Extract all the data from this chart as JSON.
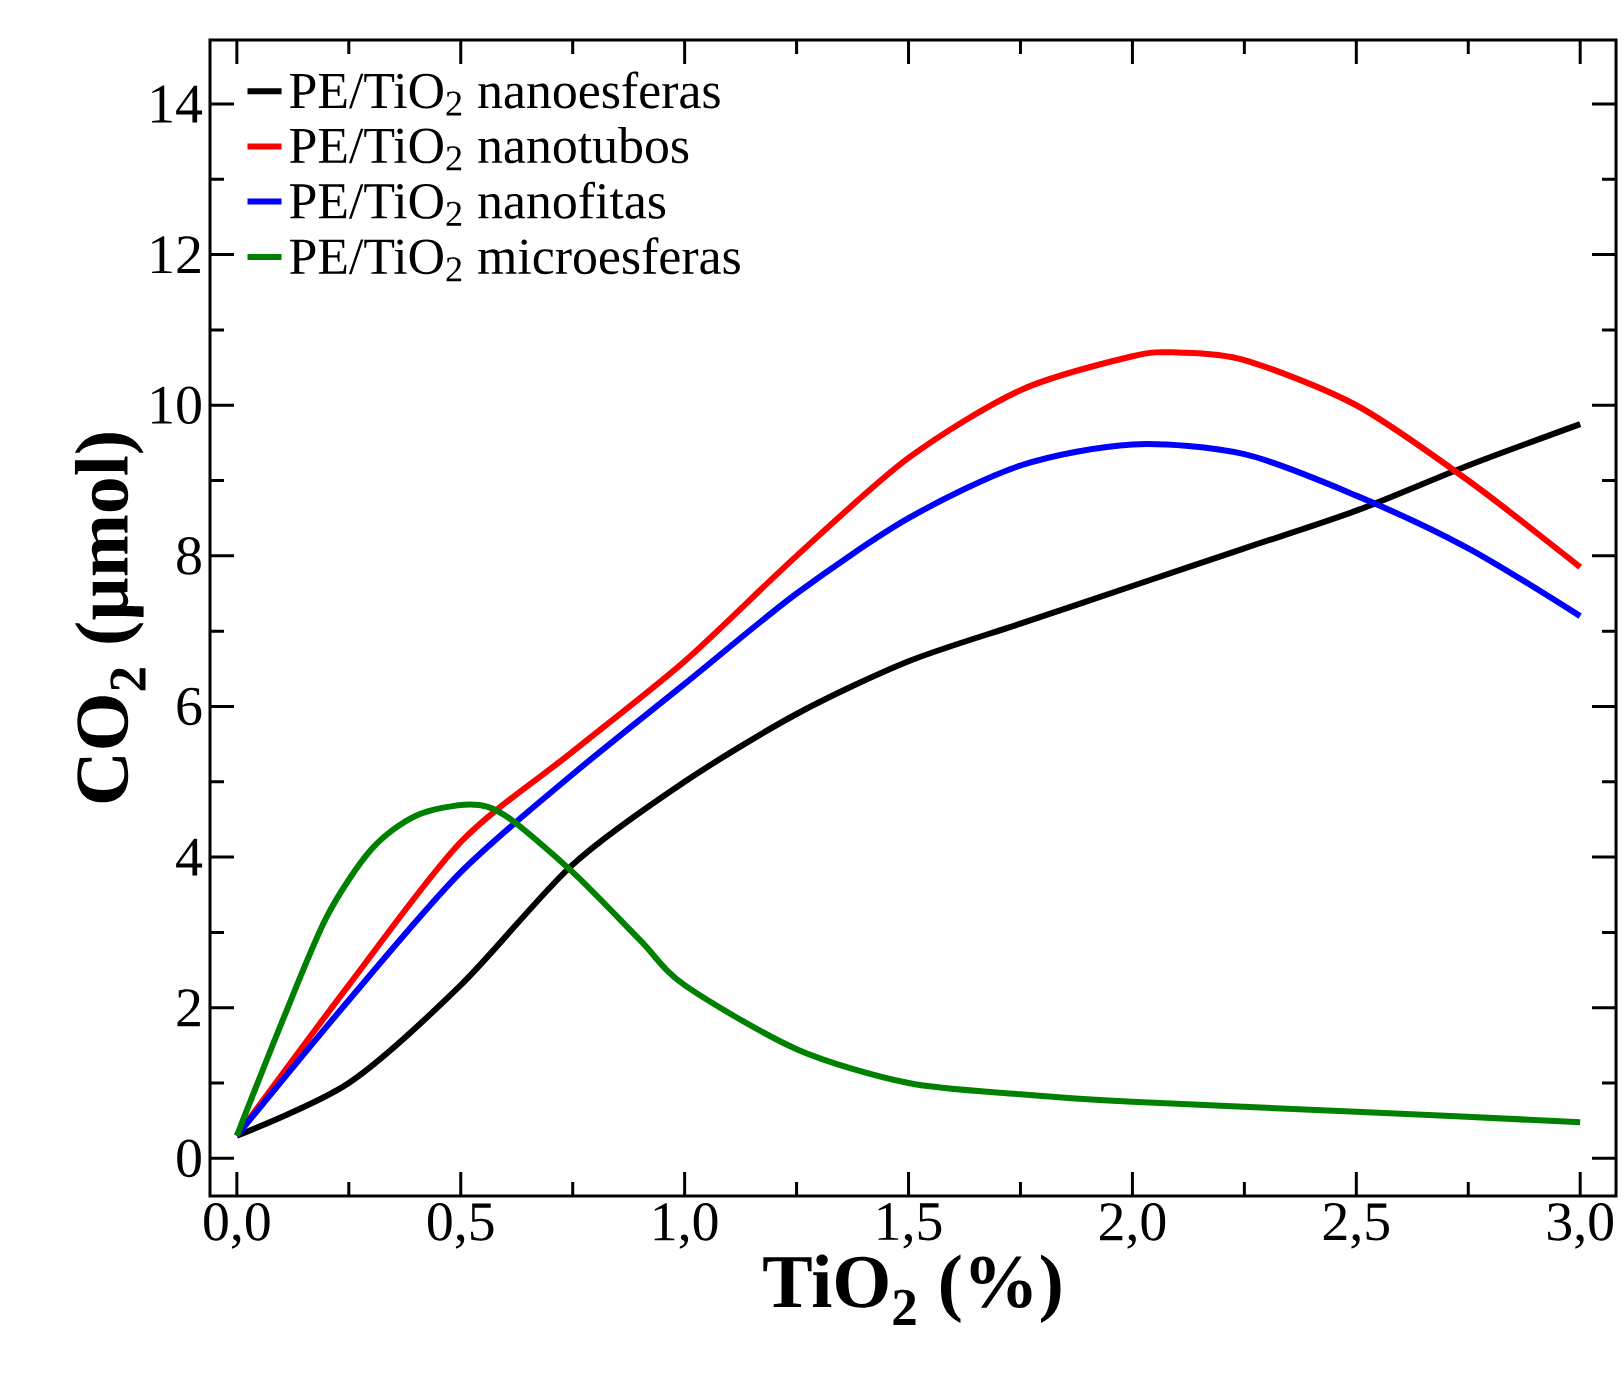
{
  "chart_data": {
    "type": "line",
    "xlabel": "**TiO$_{2}$ (%)**",
    "ylabel": "**CO$_{2}$ (µmol)**",
    "xlim": [
      -0.06,
      3.08
    ],
    "ylim": [
      -0.5,
      14.85
    ],
    "xticks": [
      {
        "value": 0,
        "label": "0,0"
      },
      {
        "value": 0.5,
        "label": "0,5"
      },
      {
        "value": 1,
        "label": "1,0"
      },
      {
        "value": 1.5,
        "label": "1,5"
      },
      {
        "value": 2,
        "label": "2,0"
      },
      {
        "value": 2.5,
        "label": "2,5"
      },
      {
        "value": 3,
        "label": "3,0"
      }
    ],
    "yticks": [
      0,
      2,
      4,
      6,
      8,
      10,
      12,
      14
    ],
    "legend": "top left",
    "grid": false,
    "marker": "none",
    "line_style": "solid",
    "series": [
      {
        "name": "PE/TiO$_{2}$ nanoesferas",
        "color": "#000000",
        "x": [
          0,
          0.25,
          0.5,
          0.75,
          1.0,
          1.25,
          1.5,
          1.75,
          2.0,
          2.25,
          2.5,
          2.75,
          3.0
        ],
        "values": [
          0.3,
          1.0,
          2.3,
          3.9,
          5.0,
          5.9,
          6.6,
          7.1,
          7.6,
          8.1,
          8.6,
          9.2,
          9.75
        ]
      },
      {
        "name": "PE/TiO$_{2}$ nanotubos",
        "color": "#ff0000",
        "x": [
          0,
          0.25,
          0.5,
          0.75,
          1.0,
          1.25,
          1.5,
          1.75,
          2.0,
          2.1,
          2.25,
          2.5,
          2.75,
          3.0
        ],
        "values": [
          0.3,
          2.3,
          4.2,
          5.4,
          6.6,
          8.0,
          9.3,
          10.2,
          10.65,
          10.7,
          10.6,
          10.0,
          9.0,
          7.85
        ]
      },
      {
        "name": "PE/TiO$_{2}$ nanofitas",
        "color": "#0000ff",
        "x": [
          0,
          0.25,
          0.5,
          0.75,
          1.0,
          1.25,
          1.5,
          1.75,
          2.0,
          2.25,
          2.5,
          2.75,
          3.0
        ],
        "values": [
          0.3,
          2.1,
          3.8,
          5.1,
          6.3,
          7.5,
          8.5,
          9.2,
          9.48,
          9.35,
          8.8,
          8.1,
          7.2
        ]
      },
      {
        "name": "PE/TiO$_{2}$ microesferas",
        "color": "#008000",
        "x": [
          0,
          0.1,
          0.2,
          0.3,
          0.4,
          0.52,
          0.6,
          0.75,
          0.9,
          1.0,
          1.25,
          1.5,
          1.75,
          2.0,
          2.5,
          3.0
        ],
        "values": [
          0.3,
          1.8,
          3.2,
          4.1,
          4.55,
          4.7,
          4.55,
          3.8,
          2.9,
          2.3,
          1.45,
          1.0,
          0.85,
          0.75,
          0.62,
          0.48
        ]
      }
    ]
  }
}
